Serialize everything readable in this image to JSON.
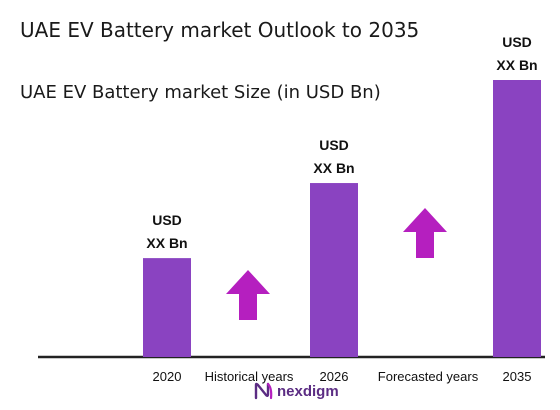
{
  "title": "UAE EV Battery market  Outlook to 2035",
  "subtitle": "UAE EV Battery market Size (in USD Bn)",
  "colors": {
    "bar": "#8a43c1",
    "arrow": "#b51fbf",
    "baseline": "#222222",
    "text": "#111111",
    "brand": "#5b2c83"
  },
  "chart_data": {
    "type": "bar",
    "categories": [
      "2020",
      "2026",
      "2035"
    ],
    "bars": [
      {
        "category": "2020",
        "label_top": "USD",
        "label_bottom": "XX Bn",
        "relative_height": 0.357
      },
      {
        "category": "2026",
        "label_top": "USD",
        "label_bottom": "XX Bn",
        "relative_height": 0.628
      },
      {
        "category": "2035",
        "label_top": "USD",
        "label_bottom": "XX Bn",
        "relative_height": 1.0
      }
    ],
    "period_labels": [
      "Historical years",
      "Forecasted years"
    ],
    "arrows": [
      "up",
      "up"
    ]
  },
  "brand": {
    "name": "nexdigm"
  }
}
